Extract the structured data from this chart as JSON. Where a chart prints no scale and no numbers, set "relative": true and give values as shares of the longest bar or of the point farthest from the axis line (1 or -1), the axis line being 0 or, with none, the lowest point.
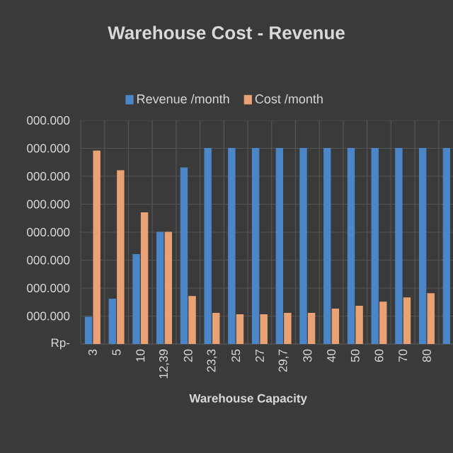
{
  "chart_data": {
    "type": "bar",
    "title": "Warehouse Cost - Revenue",
    "xlabel": "Warehouse Capacity",
    "categories": [
      "3",
      "5",
      "10",
      "12,39",
      "20",
      "23,3",
      "25",
      "27",
      "29,7",
      "30",
      "40",
      "50",
      "60",
      "70",
      "80",
      null
    ],
    "relative": true,
    "series": [
      {
        "name": "Revenue /month",
        "color": "#4a86c8",
        "values": [
          0.137,
          0.229,
          0.457,
          0.571,
          0.9,
          1,
          1,
          1,
          1,
          1,
          1,
          1,
          1,
          1,
          1,
          1
        ]
      },
      {
        "name": "Cost /month",
        "color": "#eaa274",
        "values": [
          0.986,
          0.886,
          0.671,
          0.571,
          0.243,
          0.157,
          0.15,
          0.15,
          0.157,
          0.157,
          0.179,
          0.193,
          0.214,
          0.236,
          0.257,
          null
        ]
      }
    ],
    "annotations": [
      "Rp-",
      "000.000",
      "000.000",
      "000.000",
      "000.000",
      "000.000",
      "000.000",
      "000.000",
      "000.000"
    ],
    "grid": true,
    "legend": "top"
  }
}
